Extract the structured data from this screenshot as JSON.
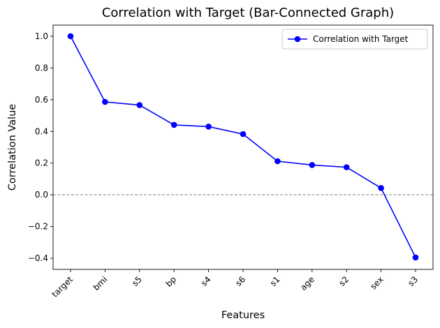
{
  "chart_data": {
    "type": "line",
    "title": "Correlation with Target (Bar-Connected Graph)",
    "xlabel": "Features",
    "ylabel": "Correlation Value",
    "categories": [
      "target",
      "bmi",
      "s5",
      "bp",
      "s4",
      "s6",
      "s1",
      "age",
      "s2",
      "sex",
      "s3"
    ],
    "series": [
      {
        "name": "Correlation with Target",
        "color": "#0000ff",
        "marker": "circle",
        "values": [
          1.0,
          0.586,
          0.566,
          0.441,
          0.43,
          0.383,
          0.212,
          0.188,
          0.174,
          0.043,
          -0.395
        ]
      }
    ],
    "ylim": [
      -0.47,
      1.07
    ],
    "yticks": [
      -0.4,
      -0.2,
      0.0,
      0.2,
      0.4,
      0.6,
      0.8,
      1.0
    ],
    "ytick_labels": [
      "−0.4",
      "−0.2",
      "0.0",
      "0.2",
      "0.4",
      "0.6",
      "0.8",
      "1.0"
    ],
    "reference_line": {
      "y": 0.0,
      "style": "dashed",
      "color": "#808080"
    },
    "grid": false,
    "legend_position": "upper right"
  }
}
